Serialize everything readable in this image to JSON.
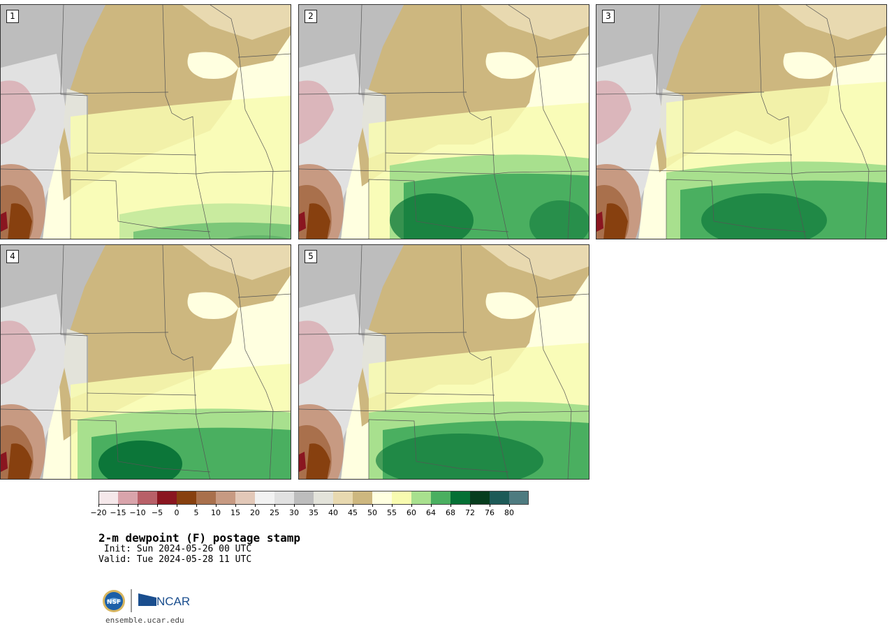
{
  "title": "2-m dewpoint (F) postage stamp",
  "init": " Init: Sun 2024-05-26 00 UTC",
  "valid": "Valid: Tue 2024-05-28 11 UTC",
  "site": "ensemble.ucar.edu",
  "logos": {
    "nsf": "NSF",
    "ncar": "NCAR"
  },
  "panels": [
    {
      "label": "1"
    },
    {
      "label": "2"
    },
    {
      "label": "3"
    },
    {
      "label": "4"
    },
    {
      "label": "5"
    }
  ],
  "colorbar": {
    "colors": [
      "#f5e8ea",
      "#d9a4ab",
      "#b86068",
      "#8a1620",
      "#87400f",
      "#a9704c",
      "#c79a82",
      "#e2c8b8",
      "#f2f2f2",
      "#e1e1e1",
      "#bdbdbd",
      "#e3e3da",
      "#e8d9b0",
      "#cdb77f",
      "#ffffe0",
      "#f8fbb0",
      "#a8e08e",
      "#4aaf60",
      "#057035",
      "#073d1e",
      "#1d5a57",
      "#4e7b80"
    ],
    "ticks": [
      "−20",
      "−15",
      "−10",
      "−5",
      "0",
      "5",
      "10",
      "15",
      "20",
      "25",
      "30",
      "35",
      "40",
      "45",
      "50",
      "55",
      "60",
      "64",
      "68",
      "72",
      "76",
      "80"
    ]
  }
}
